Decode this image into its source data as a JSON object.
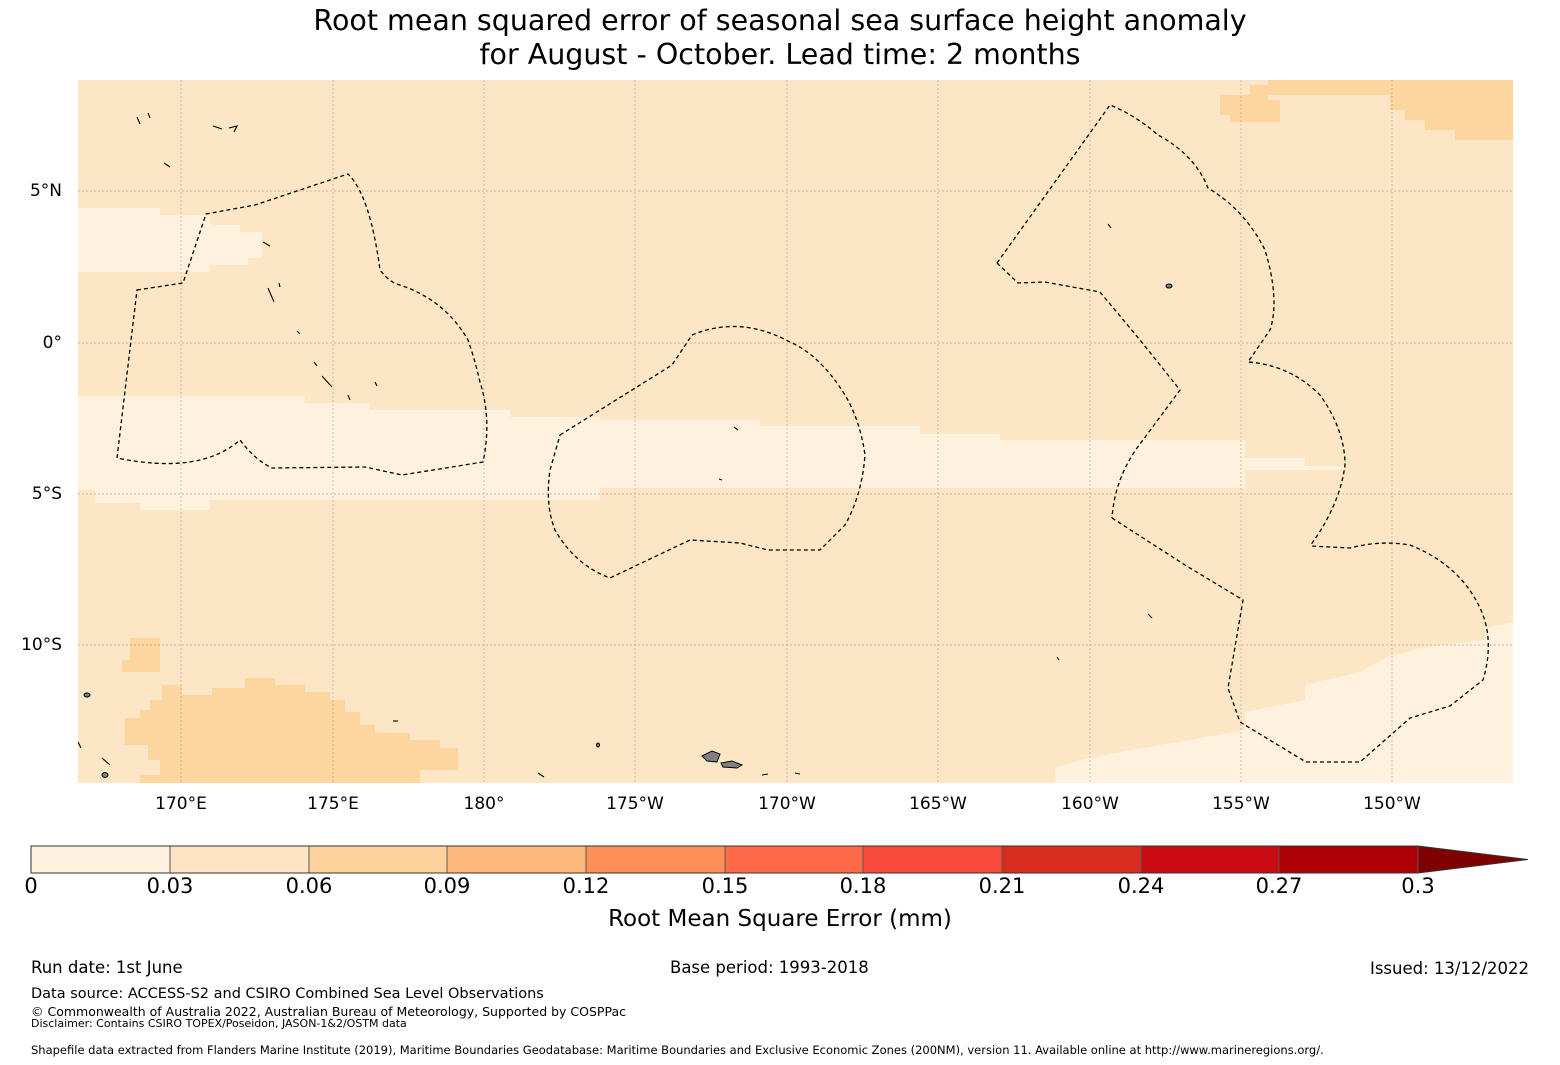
{
  "title_line1": "Root mean squared error of seasonal sea surface height anomaly",
  "title_line2": "for August - October. Lead time: 2 months",
  "map": {
    "lat_labels": [
      "5°N",
      "0°",
      "5°S",
      "10°S"
    ],
    "lon_labels": [
      "170°E",
      "175°E",
      "180°",
      "175°W",
      "170°W",
      "165°W",
      "160°W",
      "155°W",
      "150°W"
    ],
    "colors": {
      "lightest": "#fef1de",
      "base": "#fde6c6",
      "higher": "#fdd59e",
      "land": "#808080",
      "grid": "#7a7a7a"
    }
  },
  "colorbar": {
    "ticks": [
      "0",
      "0.03",
      "0.06",
      "0.09",
      "0.12",
      "0.15",
      "0.18",
      "0.21",
      "0.24",
      "0.27",
      "0.3"
    ],
    "colors": [
      "#fff1de",
      "#fee3c4",
      "#fdd29d",
      "#fdb97c",
      "#fd8f57",
      "#fc6a47",
      "#f84b3c",
      "#d82c20",
      "#c80c12",
      "#ae0005",
      "#7f0000"
    ],
    "label": "Root Mean Square Error (mm)"
  },
  "footer": {
    "run_date": "Run date: 1st June",
    "base_period": "Base period: 1993-2018",
    "issued": "Issued: 13/12/2022",
    "data_source": "Data source: ACCESS-S2 and CSIRO Combined Sea Level Observations",
    "copyright": "© Commonwealth of Australia 2022, Australian Bureau of Meteorology, Supported by COSPPac",
    "disclaimer": "Disclaimer: Contains CSIRO TOPEX/Poseidon, JASON-1&2/OSTM data",
    "shapefile": "Shapefile data extracted from Flanders Marine Institute (2019), Maritime Boundaries Geodatabase: Maritime Boundaries and Exclusive Economic Zones (200NM), version 11. Available online at http://www.marineregions.org/."
  }
}
